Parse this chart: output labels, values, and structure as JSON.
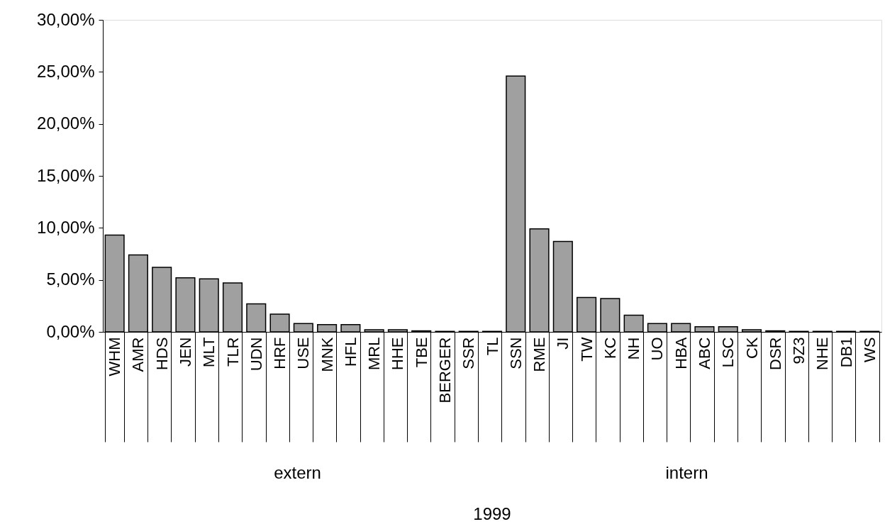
{
  "chart_data": {
    "type": "bar",
    "categories": [
      "WHM",
      "AMR",
      "HDS",
      "JEN",
      "MLT",
      "TLR",
      "UDN",
      "HRF",
      "USE",
      "MNK",
      "HFL",
      "MRL",
      "HHE",
      "TBE",
      "BERGER",
      "SSR",
      "TL",
      "SSN",
      "RME",
      "JI",
      "TW",
      "KC",
      "NH",
      "UO",
      "HBA",
      "ABC",
      "LSC",
      "CK",
      "DSR",
      "9Z3",
      "NHE",
      "DB1",
      "WS"
    ],
    "values": [
      9.3,
      7.4,
      6.2,
      5.2,
      5.1,
      4.7,
      2.7,
      1.7,
      0.8,
      0.7,
      0.7,
      0.2,
      0.2,
      0.1,
      0.05,
      0.05,
      0.05,
      24.6,
      9.9,
      8.7,
      3.3,
      3.2,
      1.6,
      0.8,
      0.8,
      0.5,
      0.5,
      0.2,
      0.1,
      0.05,
      0.05,
      0.05,
      0.05
    ],
    "color": "#a0a0a0",
    "ylim": [
      0,
      30
    ],
    "yticks": [
      {
        "value": 0,
        "label": "0,00%"
      },
      {
        "value": 5,
        "label": "5,00%"
      },
      {
        "value": 10,
        "label": "10,00%"
      },
      {
        "value": 15,
        "label": "15,00%"
      },
      {
        "value": 20,
        "label": "20,00%"
      },
      {
        "value": 25,
        "label": "25,00%"
      },
      {
        "value": 30,
        "label": "30,00%"
      }
    ],
    "grid": false,
    "annotations": [
      "extern",
      "intern",
      "1999"
    ]
  }
}
